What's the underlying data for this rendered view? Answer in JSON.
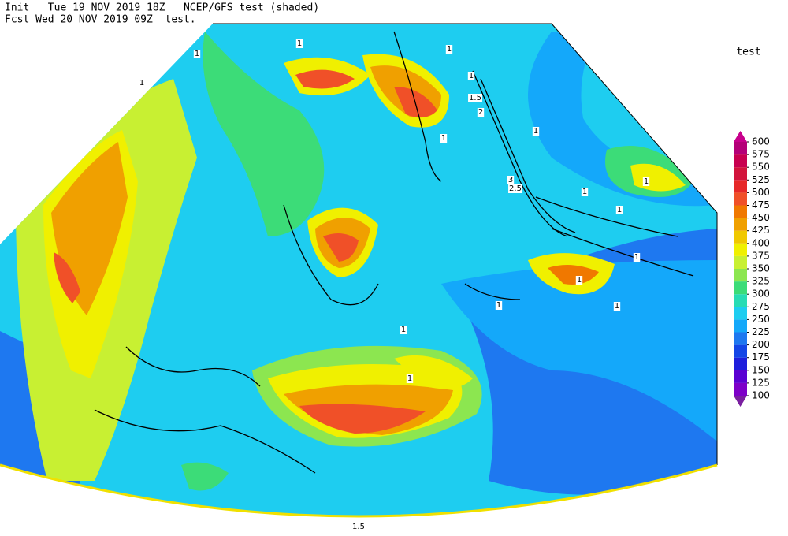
{
  "header": {
    "line1": "Init   Tue 19 NOV 2019 18Z   NCEP/GFS test (shaded)",
    "line2": "Fcst Wed 20 NOV 2019 09Z  test."
  },
  "colorbar": {
    "title": "test",
    "levels": [
      100,
      125,
      150,
      175,
      200,
      225,
      250,
      275,
      300,
      325,
      350,
      375,
      400,
      425,
      450,
      475,
      500,
      525,
      550,
      575,
      600
    ],
    "colors": [
      "#7a1fa0",
      "#7d00c8",
      "#5a00d2",
      "#1e1edc",
      "#1446e6",
      "#1e78f0",
      "#14a8fa",
      "#1ecdf0",
      "#28dcb4",
      "#3cdc78",
      "#8ce650",
      "#c8f032",
      "#f0f000",
      "#f0c800",
      "#f0a000",
      "#f07800",
      "#f05028",
      "#e62828",
      "#d2143c",
      "#c80050",
      "#b40078",
      "#c8008c"
    ]
  },
  "contour_labels": [
    "1",
    "1",
    "1",
    "1.5",
    "2",
    "1",
    "1",
    "1",
    "2.5",
    "3",
    "1",
    "1",
    "1",
    "1",
    "1",
    "1",
    "1",
    "1",
    "1",
    "1",
    "1.5"
  ]
}
